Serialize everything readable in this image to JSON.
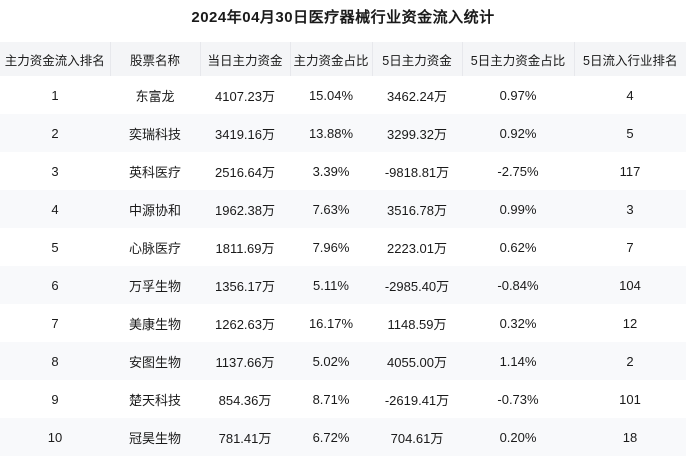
{
  "title": "2024年04月30日医疗器械行业资金流入统计",
  "colors": {
    "header_bg": "#f4f5f7",
    "stripe_bg": "#f8f9fb",
    "header_divider": "#e7e8ec",
    "text": "#1a1a1a"
  },
  "chart_data": {
    "type": "table",
    "title": "2024年04月30日医疗器械行业资金流入统计",
    "columns": [
      "主力资金流入排名",
      "股票名称",
      "当日主力资金",
      "主力资金占比",
      "5日主力资金",
      "5日主力资金占比",
      "5日流入行业排名"
    ],
    "rows": [
      [
        "1",
        "东富龙",
        "4107.23万",
        "15.04%",
        "3462.24万",
        "0.97%",
        "4"
      ],
      [
        "2",
        "奕瑞科技",
        "3419.16万",
        "13.88%",
        "3299.32万",
        "0.92%",
        "5"
      ],
      [
        "3",
        "英科医疗",
        "2516.64万",
        "3.39%",
        "-9818.81万",
        "-2.75%",
        "117"
      ],
      [
        "4",
        "中源协和",
        "1962.38万",
        "7.63%",
        "3516.78万",
        "0.99%",
        "3"
      ],
      [
        "5",
        "心脉医疗",
        "1811.69万",
        "7.96%",
        "2223.01万",
        "0.62%",
        "7"
      ],
      [
        "6",
        "万孚生物",
        "1356.17万",
        "5.11%",
        "-2985.40万",
        "-0.84%",
        "104"
      ],
      [
        "7",
        "美康生物",
        "1262.63万",
        "16.17%",
        "1148.59万",
        "0.32%",
        "12"
      ],
      [
        "8",
        "安图生物",
        "1137.66万",
        "5.02%",
        "4055.00万",
        "1.14%",
        "2"
      ],
      [
        "9",
        "楚天科技",
        "854.36万",
        "8.71%",
        "-2619.41万",
        "-0.73%",
        "101"
      ],
      [
        "10",
        "冠昊生物",
        "781.41万",
        "6.72%",
        "704.61万",
        "0.20%",
        "18"
      ]
    ]
  }
}
